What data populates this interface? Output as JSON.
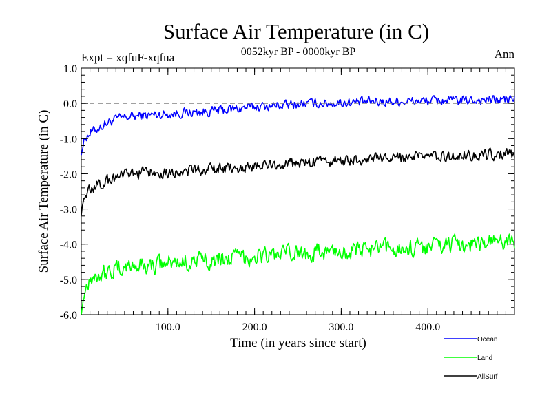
{
  "chart_data": {
    "type": "line",
    "title": "Surface Air Temperature (in C)",
    "subtitle": "0052kyr BP - 0000kyr BP",
    "expt_label": "Expt = xqfuF-xqfua",
    "season_label": "Ann",
    "xlabel": "Time (in years since start)",
    "ylabel": "Surface Air Temperature (in C)",
    "xlim": [
      0,
      500
    ],
    "ylim": [
      -6.0,
      1.0
    ],
    "x_ticks": [
      100,
      200,
      300,
      400
    ],
    "x_tick_labels": [
      "100.0",
      "200.0",
      "300.0",
      "400.0"
    ],
    "y_ticks": [
      1.0,
      0.0,
      -1.0,
      -2.0,
      -3.0,
      -4.0,
      -5.0,
      -6.0
    ],
    "y_tick_labels": [
      "1.0",
      "0.0",
      "-1.0",
      "-2.0",
      "-3.0",
      "-4.0",
      "-5.0",
      "-6.0"
    ],
    "reference_line": {
      "y": 0.0,
      "style": "dashed",
      "color": "#808080"
    },
    "legend_position": "bottom-right",
    "series": [
      {
        "name": "Ocean",
        "color": "#0000ff",
        "x": [
          0,
          5,
          10,
          20,
          30,
          40,
          50,
          60,
          80,
          100,
          120,
          140,
          160,
          180,
          200,
          220,
          240,
          260,
          280,
          300,
          320,
          340,
          360,
          380,
          400,
          420,
          440,
          460,
          480,
          500
        ],
        "values": [
          -1.35,
          -0.95,
          -0.85,
          -0.7,
          -0.55,
          -0.45,
          -0.4,
          -0.37,
          -0.33,
          -0.3,
          -0.27,
          -0.25,
          -0.2,
          -0.15,
          -0.1,
          -0.07,
          -0.05,
          0.0,
          0.0,
          0.02,
          0.03,
          0.05,
          0.05,
          0.06,
          0.07,
          0.08,
          0.08,
          0.1,
          0.1,
          0.12
        ],
        "noise": 0.12
      },
      {
        "name": "Land",
        "color": "#00ff00",
        "x": [
          0,
          5,
          10,
          20,
          30,
          40,
          50,
          60,
          80,
          100,
          120,
          140,
          160,
          180,
          200,
          220,
          240,
          260,
          280,
          300,
          320,
          340,
          360,
          380,
          400,
          420,
          440,
          460,
          480,
          500
        ],
        "values": [
          -5.9,
          -5.2,
          -4.95,
          -4.85,
          -4.8,
          -4.72,
          -4.65,
          -4.6,
          -4.6,
          -4.55,
          -4.5,
          -4.45,
          -4.42,
          -4.38,
          -4.35,
          -4.3,
          -4.28,
          -4.25,
          -4.22,
          -4.2,
          -4.18,
          -4.15,
          -4.12,
          -4.1,
          -4.05,
          -4.02,
          -4.0,
          -3.98,
          -3.95,
          -3.9
        ],
        "noise": 0.22
      },
      {
        "name": "AllSurf",
        "color": "#000000",
        "x": [
          0,
          5,
          10,
          20,
          30,
          40,
          50,
          60,
          80,
          100,
          120,
          140,
          160,
          180,
          200,
          220,
          240,
          260,
          280,
          300,
          320,
          340,
          360,
          380,
          400,
          420,
          440,
          460,
          480,
          500
        ],
        "values": [
          -3.05,
          -2.6,
          -2.45,
          -2.3,
          -2.2,
          -2.1,
          -2.05,
          -2.0,
          -1.97,
          -1.95,
          -1.92,
          -1.9,
          -1.87,
          -1.83,
          -1.8,
          -1.75,
          -1.72,
          -1.7,
          -1.65,
          -1.62,
          -1.6,
          -1.58,
          -1.56,
          -1.55,
          -1.52,
          -1.5,
          -1.48,
          -1.46,
          -1.45,
          -1.42
        ],
        "noise": 0.14
      }
    ]
  }
}
